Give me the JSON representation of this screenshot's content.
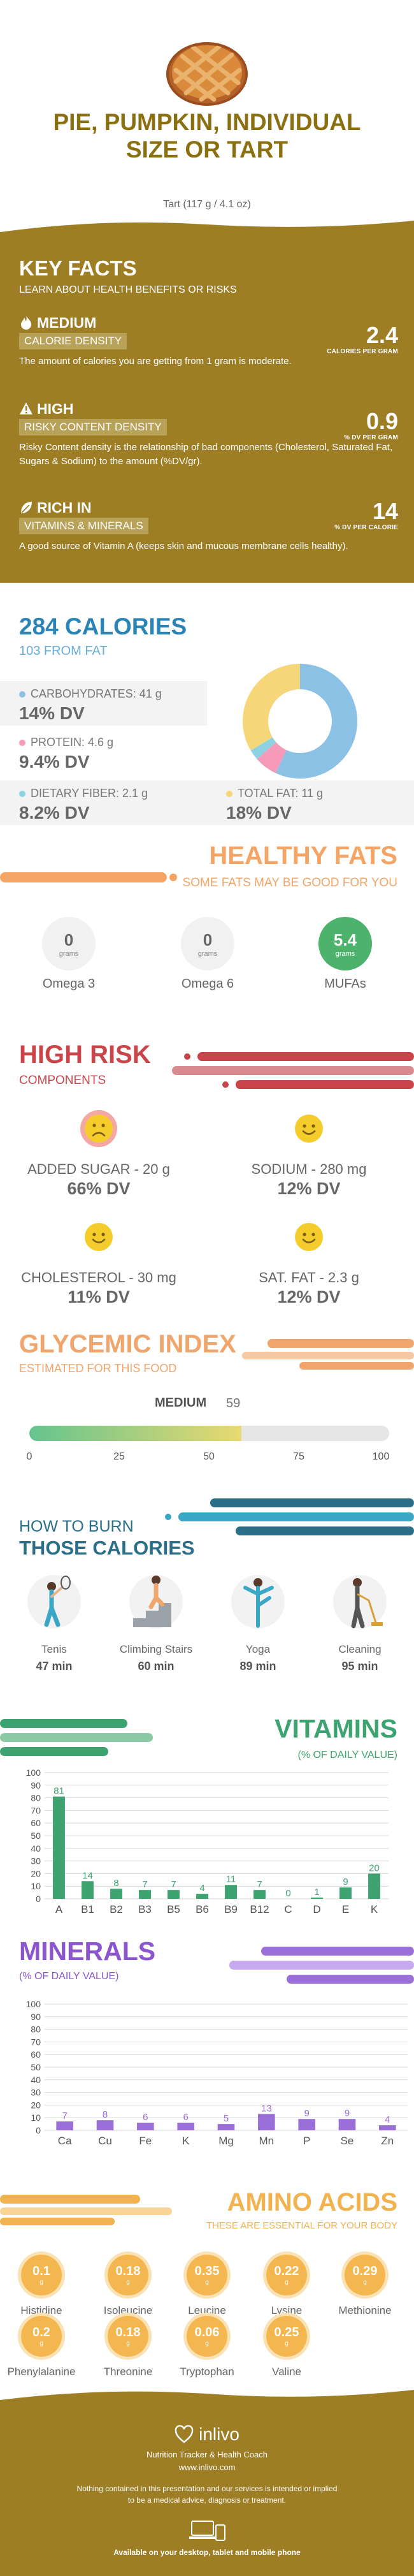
{
  "header": {
    "title": "PIE, PUMPKIN, INDIVIDUAL SIZE OR TART",
    "subtitle": "Tart (117 g / 4.1 oz)"
  },
  "key_facts": {
    "title": "KEY FACTS",
    "subtitle": "LEARN ABOUT HEALTH BENEFITS OR RISKS",
    "items": [
      {
        "badge": "MEDIUM",
        "label": "CALORIE DENSITY",
        "desc": "The amount of calories you are getting from 1 gram is moderate.",
        "value": "2.4",
        "unit": "CALORIES PER GRAM",
        "icon": "flame-icon"
      },
      {
        "badge": "HIGH",
        "label": "RISKY CONTENT DENSITY",
        "desc": "Risky Content density is the relationship of bad components (Cholesterol, Saturated Fat, Sugars & Sodium) to the amount (%DV/gr).",
        "value": "0.9",
        "unit": "% DV PER GRAM",
        "icon": "warning-icon"
      },
      {
        "badge": "RICH  IN",
        "label": "VITAMINS & MINERALS",
        "desc": "A good source of Vitamin A (keeps skin and mucous membrane cells healthy).",
        "value": "14",
        "unit": "% DV PER CALORIE",
        "icon": "leaf-icon"
      }
    ]
  },
  "calories": {
    "title": "284 CALORIES",
    "subtitle": "103 FROM FAT",
    "nutrients": [
      {
        "label": "CARBOHYDRATES: 41 g",
        "dv": "14% DV",
        "color": "#8cc1e6"
      },
      {
        "label": "PROTEIN: 4.6 g",
        "dv": "9.4% DV",
        "color": "#f59ab9"
      },
      {
        "label": "DIETARY FIBER: 2.1 g",
        "dv": "8.2% DV",
        "color": "#8ed1e2"
      },
      {
        "label": "TOTAL FAT: 11 g",
        "dv": "18% DV",
        "color": "#f5d77a"
      }
    ],
    "donut_fractions": [
      0.57,
      0.065,
      0.03,
      0.335
    ]
  },
  "healthy_fats": {
    "title": "HEALTHY FATS",
    "subtitle": "SOME FATS MAY BE GOOD FOR YOU",
    "items": [
      {
        "value": "0",
        "unit": "grams",
        "name": "Omega 3",
        "highlight": false
      },
      {
        "value": "0",
        "unit": "grams",
        "name": "Omega 6",
        "highlight": false
      },
      {
        "value": "5.4",
        "unit": "grams",
        "name": "MUFAs",
        "highlight": true
      }
    ]
  },
  "high_risk": {
    "title": "HIGH RISK",
    "subtitle": "COMPONENTS",
    "items": [
      {
        "label": "ADDED SUGAR - 20 g",
        "dv": "66% DV",
        "face": "sad-face-icon"
      },
      {
        "label": "SODIUM - 280 mg",
        "dv": "12% DV",
        "face": "happy-face-icon"
      },
      {
        "label": "CHOLESTEROL - 30 mg",
        "dv": "11% DV",
        "face": "happy-face-icon"
      },
      {
        "label": "SAT. FAT - 2.3 g",
        "dv": "12% DV",
        "face": "happy-face-icon"
      }
    ]
  },
  "glycemic": {
    "title": "GLYCEMIC INDEX",
    "subtitle": "ESTIMATED FOR THIS FOOD",
    "level": "MEDIUM",
    "value": "59",
    "value_num": 59,
    "ticks": [
      "0",
      "25",
      "50",
      "75",
      "100"
    ]
  },
  "burn": {
    "title_line1": "HOW TO BURN",
    "title_line2": "THOSE CALORIES",
    "activities": [
      {
        "name": "Tenis",
        "time": "47 min",
        "icon": "tennis-icon"
      },
      {
        "name": "Climbing Stairs",
        "time": "60 min",
        "icon": "stairs-icon"
      },
      {
        "name": "Yoga",
        "time": "89 min",
        "icon": "yoga-icon"
      },
      {
        "name": "Cleaning",
        "time": "95 min",
        "icon": "cleaning-icon"
      }
    ]
  },
  "vitamins": {
    "title": "VITAMINS",
    "subtitle": "(% OF DAILY VALUE)",
    "chart_data": {
      "type": "bar",
      "categories": [
        "A",
        "B1",
        "B2",
        "B3",
        "B5",
        "B6",
        "B9",
        "B12",
        "C",
        "D",
        "E",
        "K"
      ],
      "values": [
        81,
        14,
        8,
        7,
        7,
        4,
        11,
        7,
        0,
        1,
        9,
        20
      ],
      "ylim": [
        0,
        100
      ],
      "yticks": [
        0,
        10,
        20,
        30,
        40,
        50,
        60,
        70,
        80,
        90,
        100
      ],
      "color": "#3da471",
      "grid": true
    }
  },
  "minerals": {
    "title": "MINERALS",
    "subtitle": "(% OF DAILY VALUE)",
    "chart_data": {
      "type": "bar",
      "categories": [
        "Ca",
        "Cu",
        "Fe",
        "K",
        "Mg",
        "Mn",
        "P",
        "Se",
        "Zn"
      ],
      "values": [
        7,
        8,
        6,
        6,
        5,
        13,
        9,
        9,
        4
      ],
      "ylim": [
        0,
        100
      ],
      "yticks": [
        0,
        10,
        20,
        30,
        40,
        50,
        60,
        70,
        80,
        90,
        100
      ],
      "color": "#9b6fd8",
      "grid": true
    }
  },
  "amino": {
    "title": "AMINO ACIDS",
    "subtitle": "THESE ARE ESSENTIAL FOR YOUR BODY",
    "unit": "g",
    "items": [
      {
        "value": "0.1",
        "name": "Histidine"
      },
      {
        "value": "0.18",
        "name": "Isoleucine"
      },
      {
        "value": "0.35",
        "name": "Leucine"
      },
      {
        "value": "0.22",
        "name": "Lysine"
      },
      {
        "value": "0.29",
        "name": "Methionine"
      },
      {
        "value": "0.2",
        "name": "Phenylalanine"
      },
      {
        "value": "0.18",
        "name": "Threonine"
      },
      {
        "value": "0.06",
        "name": "Tryptophan"
      },
      {
        "value": "0.25",
        "name": "Valine"
      }
    ]
  },
  "footer": {
    "brand": "inlivo",
    "tagline": "Nutrition Tracker & Health Coach",
    "url": "www.inlivo.com",
    "disclaimer1": "Nothing contained in this presentation and our services is intended or implied",
    "disclaimer2": "to be a medical advice, diagnosis or treatment.",
    "available": "Available on your desktop, tablet and mobile phone"
  }
}
